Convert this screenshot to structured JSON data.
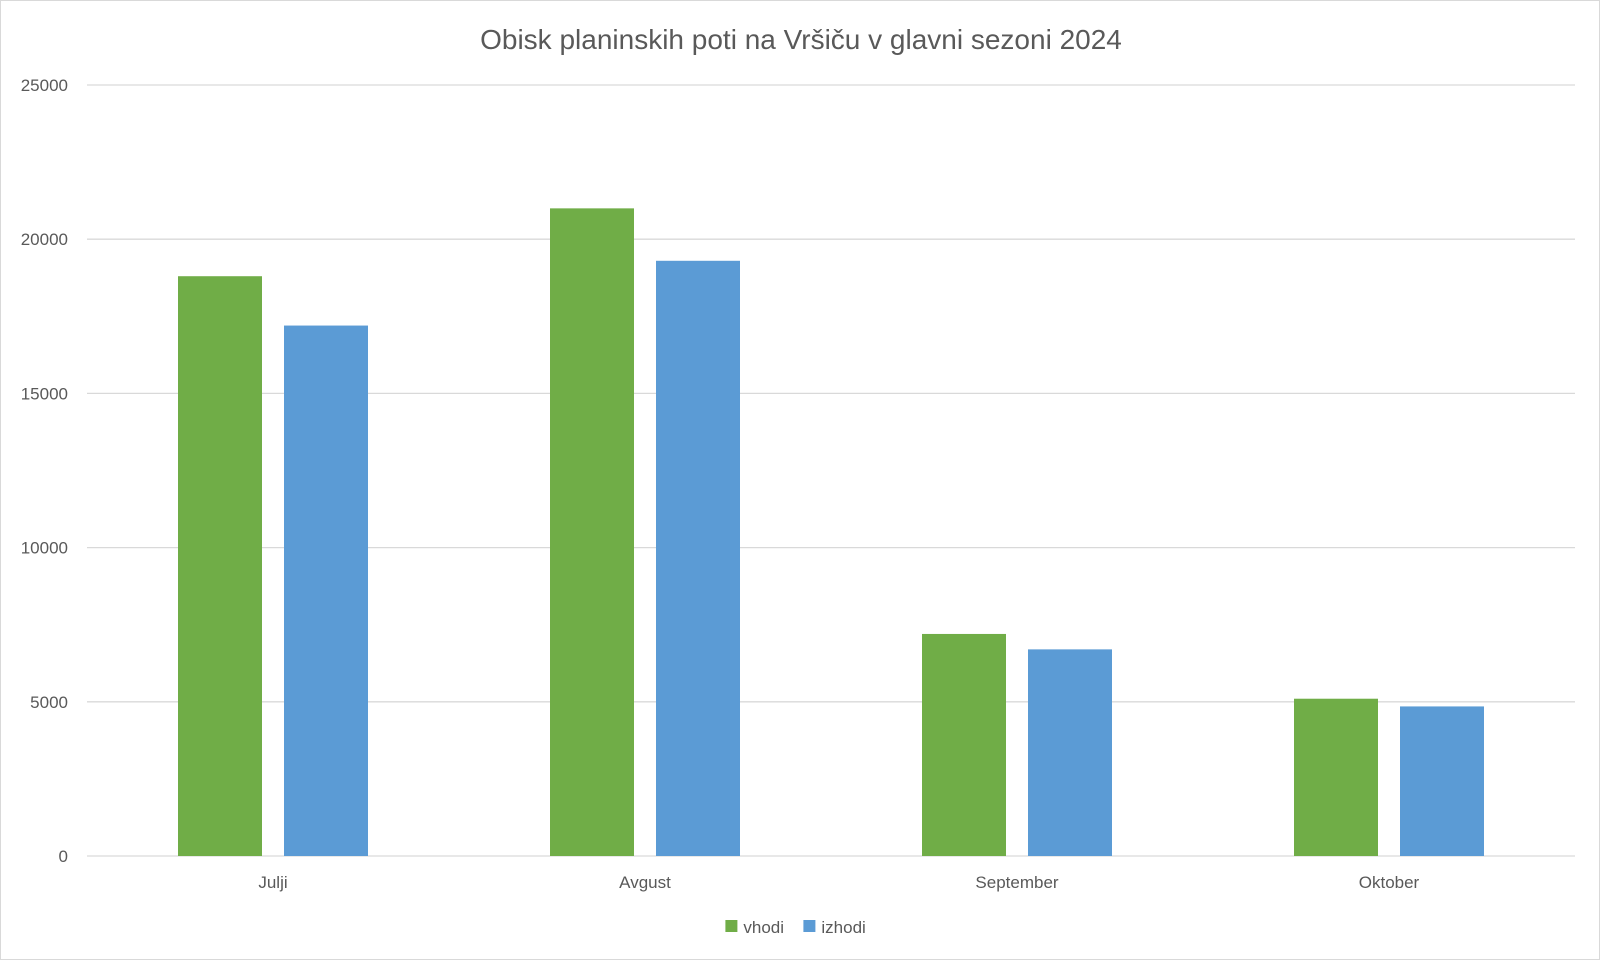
{
  "chart_data": {
    "type": "bar",
    "title": "Obisk planinskih poti na Vršiču v glavni sezoni 2024",
    "categories": [
      "Julji",
      "Avgust",
      "September",
      "Oktober"
    ],
    "series": [
      {
        "name": "vhodi",
        "color": "#70AD47",
        "values": [
          18800,
          21000,
          7200,
          5100
        ]
      },
      {
        "name": "izhodi",
        "color": "#5B9BD5",
        "values": [
          17200,
          19300,
          6700,
          4850
        ]
      }
    ],
    "ylim": [
      0,
      25000
    ],
    "yticks": [
      0,
      5000,
      10000,
      15000,
      20000,
      25000
    ],
    "grid": true,
    "gridline_color": "#d9d9d9",
    "legend_position": "bottom"
  }
}
